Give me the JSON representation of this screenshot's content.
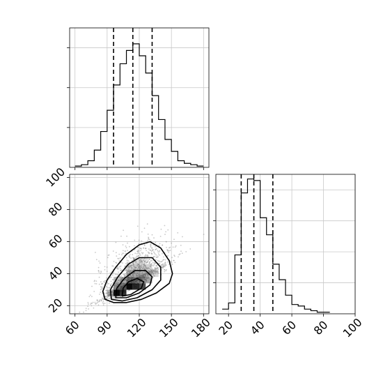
{
  "chart_data": [
    {
      "panel": "marginal-x",
      "type": "histogram",
      "xlim": [
        55,
        185
      ],
      "bin_edges": [
        60,
        66,
        72,
        78,
        84,
        90,
        96,
        102,
        108,
        114,
        120,
        126,
        132,
        138,
        144,
        150,
        156,
        162,
        168,
        174,
        180
      ],
      "counts": [
        0.01,
        0.02,
        0.05,
        0.13,
        0.27,
        0.43,
        0.62,
        0.78,
        0.88,
        0.93,
        0.84,
        0.71,
        0.54,
        0.36,
        0.21,
        0.12,
        0.05,
        0.03,
        0.02,
        0.01
      ],
      "quantile_lines": [
        96,
        114,
        132
      ],
      "grid": true
    },
    {
      "panel": "joint",
      "type": "scatter+contour",
      "xlim": [
        55,
        185
      ],
      "ylim": [
        15,
        102
      ],
      "x_ticks": [
        "60",
        "90",
        "120",
        "150",
        "180"
      ],
      "y_ticks": [
        "20",
        "40",
        "60",
        "80",
        "100"
      ],
      "density_peak": [
        105,
        30
      ],
      "grid": true
    },
    {
      "panel": "marginal-y",
      "type": "histogram",
      "xlim": [
        12,
        100
      ],
      "bin_edges": [
        16,
        20,
        24,
        28,
        32,
        36,
        40,
        44,
        48,
        52,
        56,
        60,
        64,
        68,
        72,
        76,
        80,
        84
      ],
      "counts": [
        0.03,
        0.07,
        0.38,
        0.78,
        0.87,
        0.86,
        0.62,
        0.51,
        0.32,
        0.22,
        0.12,
        0.06,
        0.05,
        0.03,
        0.02,
        0.01,
        0.01
      ],
      "quantile_lines": [
        28,
        36,
        48
      ],
      "x_ticks": [
        "20",
        "40",
        "60",
        "80",
        "100"
      ],
      "grid": true
    }
  ]
}
